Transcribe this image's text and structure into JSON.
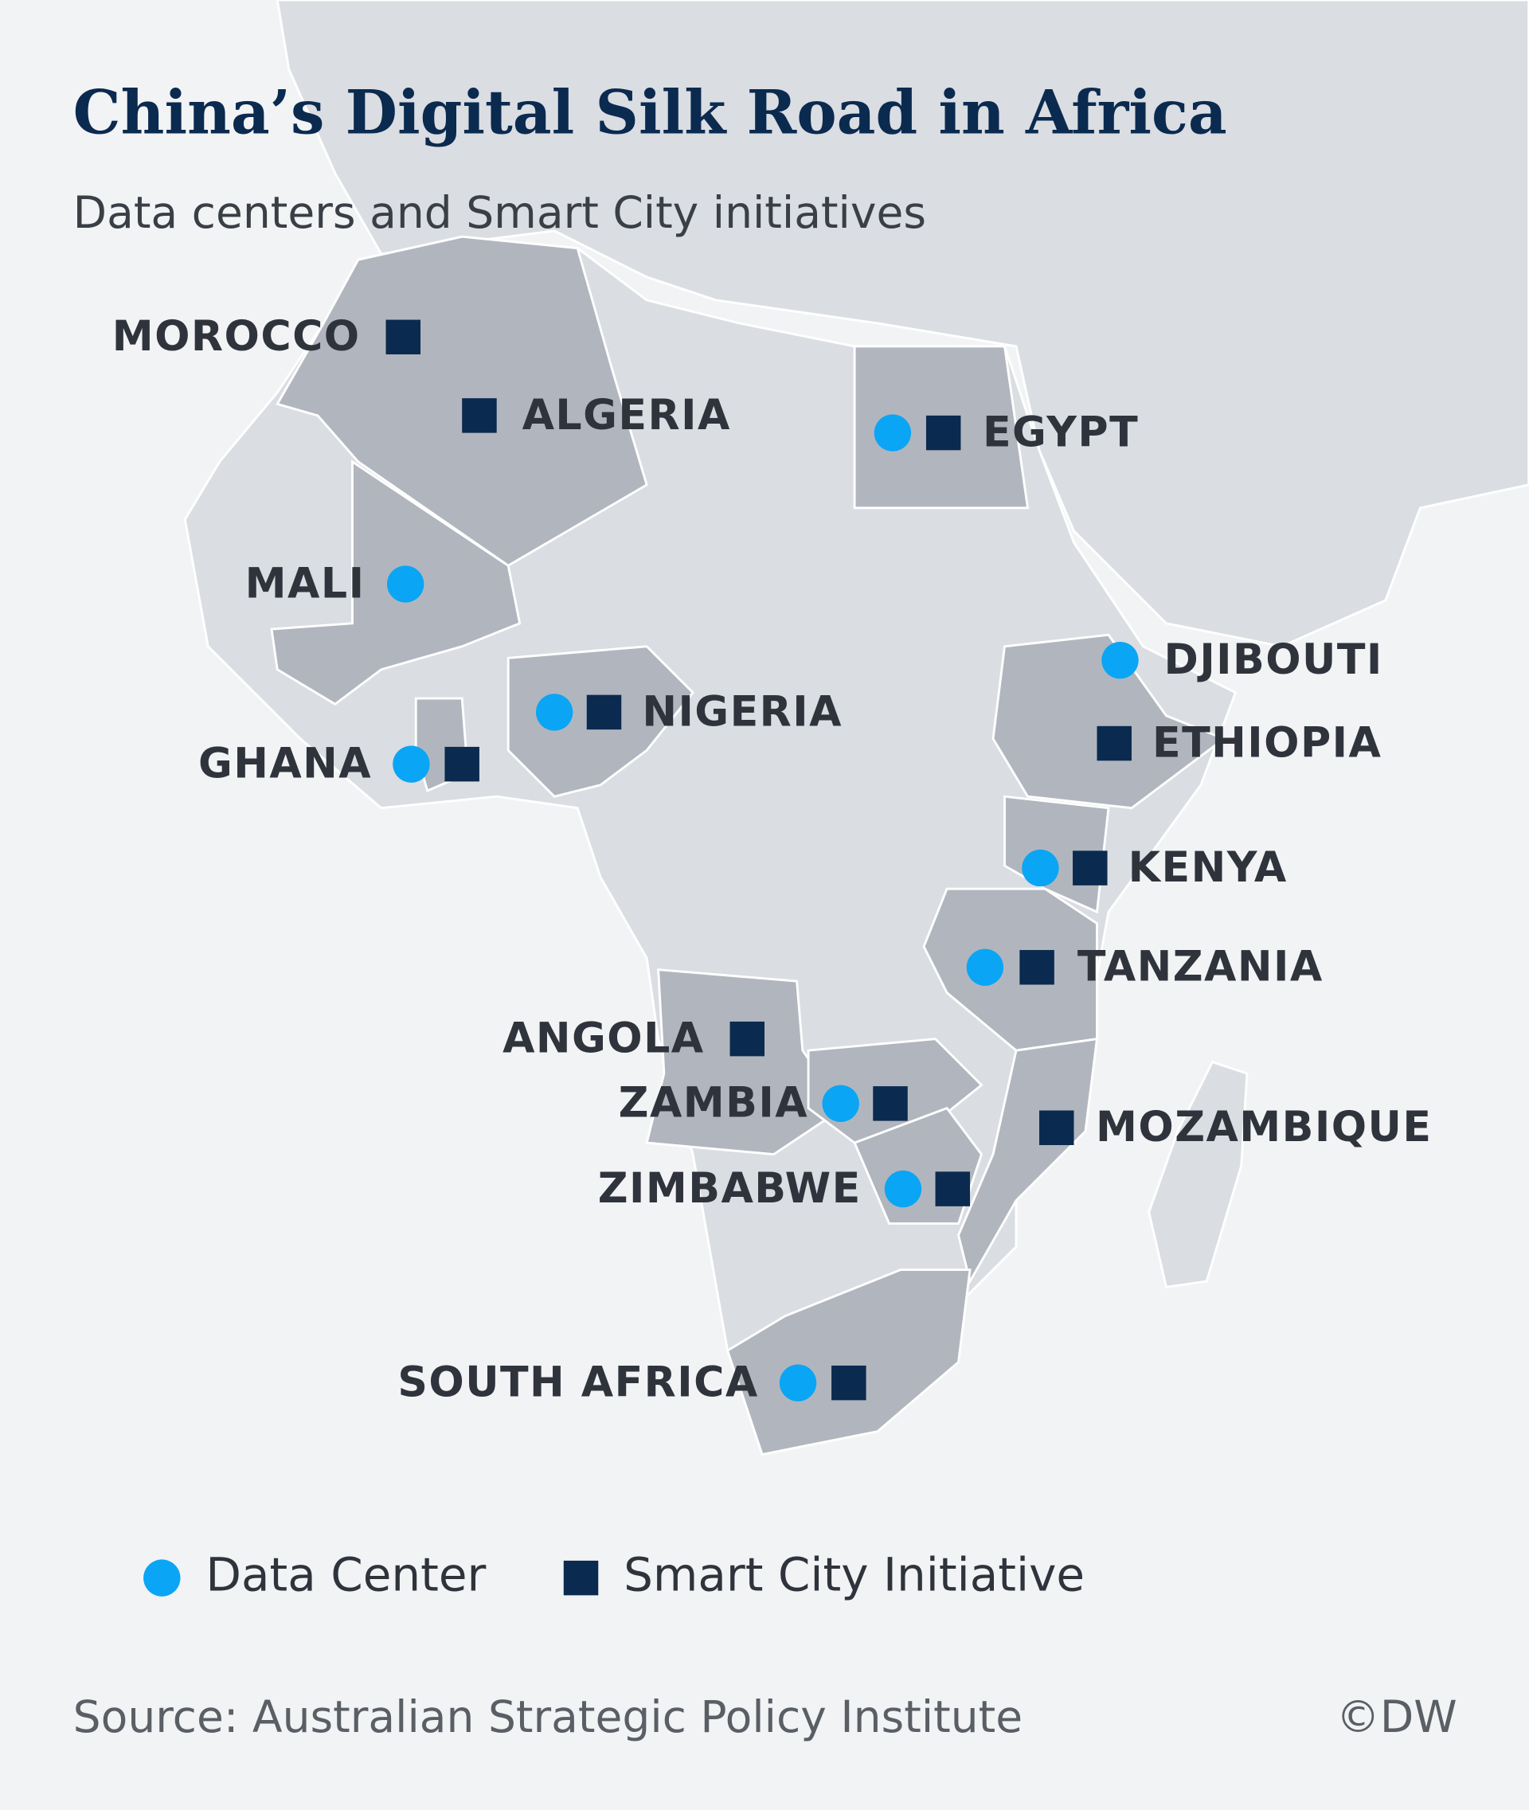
{
  "header": {
    "title": "China’s Digital Silk Road in Africa",
    "subtitle": "Data centers and Smart City initiatives"
  },
  "countries": [
    {
      "label": "MOROCCO",
      "data_center": false,
      "smart_city": true
    },
    {
      "label": "ALGERIA",
      "data_center": false,
      "smart_city": true
    },
    {
      "label": "EGYPT",
      "data_center": true,
      "smart_city": true
    },
    {
      "label": "MALI",
      "data_center": true,
      "smart_city": false
    },
    {
      "label": "DJIBOUTI",
      "data_center": true,
      "smart_city": false
    },
    {
      "label": "ETHIOPIA",
      "data_center": false,
      "smart_city": true
    },
    {
      "label": "NIGERIA",
      "data_center": true,
      "smart_city": true
    },
    {
      "label": "GHANA",
      "data_center": true,
      "smart_city": true
    },
    {
      "label": "KENYA",
      "data_center": true,
      "smart_city": true
    },
    {
      "label": "TANZANIA",
      "data_center": true,
      "smart_city": true
    },
    {
      "label": "ANGOLA",
      "data_center": false,
      "smart_city": true
    },
    {
      "label": "ZAMBIA",
      "data_center": true,
      "smart_city": true
    },
    {
      "label": "MOZAMBIQUE",
      "data_center": false,
      "smart_city": true
    },
    {
      "label": "ZIMBABWE",
      "data_center": true,
      "smart_city": true
    },
    {
      "label": "SOUTH AFRICA",
      "data_center": true,
      "smart_city": true
    }
  ],
  "legend": {
    "data_center": "Data Center",
    "smart_city": "Smart City Initiative",
    "data_center_color": "#0aa5f5",
    "smart_city_color": "#0b2a4f"
  },
  "footer": {
    "source": "Source: Australian Strategic Policy Institute",
    "credit": "©DW"
  }
}
